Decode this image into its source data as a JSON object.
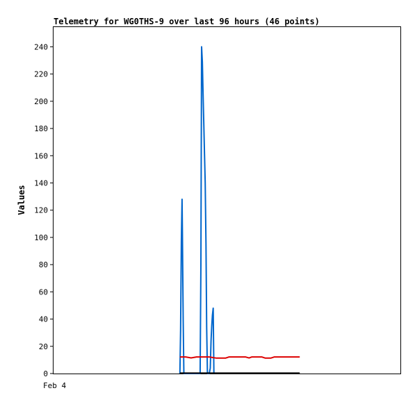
{
  "chart_data": {
    "type": "line",
    "title": "Telemetry for WG0THS-9 over last 96 hours (46 points)",
    "ylabel": "Values",
    "xlabel": "",
    "x_tick_labels": [
      "Feb 4"
    ],
    "y_ticks": [
      0,
      20,
      40,
      60,
      80,
      100,
      120,
      140,
      160,
      180,
      200,
      220,
      240
    ],
    "ylim": [
      0,
      255
    ],
    "xlim": [
      0,
      96
    ],
    "grid": false,
    "legend": "none",
    "series": [
      {
        "color": "#0066cc",
        "points": [
          [
            34.9,
            0
          ],
          [
            35.1,
            32
          ],
          [
            35.3,
            97
          ],
          [
            35.5,
            128
          ],
          [
            35.6,
            104
          ],
          [
            35.8,
            40
          ],
          [
            36.0,
            0
          ],
          [
            40.5,
            0
          ],
          [
            40.7,
            80
          ],
          [
            40.9,
            240
          ],
          [
            41.1,
            229
          ],
          [
            41.3,
            206
          ],
          [
            41.5,
            185
          ],
          [
            41.7,
            161
          ],
          [
            41.9,
            140
          ],
          [
            42.1,
            96
          ],
          [
            42.3,
            34
          ],
          [
            42.5,
            0
          ],
          [
            43.0,
            0
          ],
          [
            43.3,
            4
          ],
          [
            43.5,
            24
          ],
          [
            43.7,
            35
          ],
          [
            43.9,
            43
          ],
          [
            44.1,
            48
          ],
          [
            44.3,
            0
          ]
        ]
      },
      {
        "color": "#dd0000",
        "points": [
          [
            34.9,
            12.2
          ],
          [
            36.5,
            12.2
          ],
          [
            38.0,
            11.5
          ],
          [
            39.5,
            12.2
          ],
          [
            41.0,
            12.2
          ],
          [
            43.0,
            12.2
          ],
          [
            45.0,
            11.3
          ],
          [
            47.5,
            11.3
          ],
          [
            48.5,
            12.2
          ],
          [
            53.0,
            12.2
          ],
          [
            54.0,
            11.4
          ],
          [
            54.8,
            12.2
          ],
          [
            57.5,
            12.2
          ],
          [
            58.5,
            11.3
          ],
          [
            60.0,
            11.3
          ],
          [
            61.0,
            12.2
          ],
          [
            68.0,
            12.2
          ]
        ]
      },
      {
        "color": "#000000",
        "points": [
          [
            34.9,
            0.3
          ],
          [
            68.0,
            0.3
          ]
        ]
      }
    ]
  }
}
